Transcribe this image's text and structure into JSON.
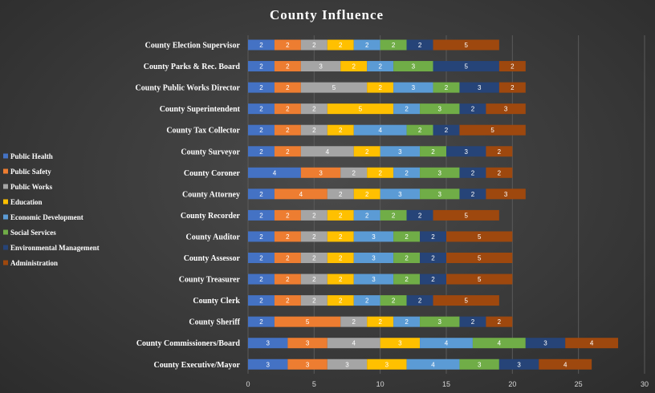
{
  "chart_data": {
    "type": "bar",
    "orientation": "horizontal",
    "stacked": true,
    "title": "County Influence",
    "xlim": [
      0,
      30
    ],
    "xticks": [
      0,
      5,
      10,
      15,
      20,
      25,
      30
    ],
    "grid": "vertical",
    "legend_position": "left",
    "categories": [
      "County Election Supervisor",
      "County Parks & Rec. Board",
      "County Public Works Director",
      "County Superintendent",
      "County Tax Collector",
      "County Surveyor",
      "County Coroner",
      "County Attorney",
      "County Recorder",
      "County Auditor",
      "County Assessor",
      "County Treasurer",
      "County Clerk",
      "County Sheriff",
      "County Commissioners/Board",
      "County Executive/Mayor"
    ],
    "series": [
      {
        "name": "Public Health",
        "color": "#4472c4",
        "values": [
          2,
          2,
          2,
          2,
          2,
          2,
          4,
          2,
          2,
          2,
          2,
          2,
          2,
          2,
          3,
          3
        ]
      },
      {
        "name": "Public Safety",
        "color": "#ed7d31",
        "values": [
          2,
          2,
          2,
          2,
          2,
          2,
          3,
          4,
          2,
          2,
          2,
          2,
          2,
          5,
          3,
          3
        ]
      },
      {
        "name": "Public Works",
        "color": "#a5a5a5",
        "values": [
          2,
          3,
          5,
          2,
          2,
          4,
          2,
          2,
          2,
          2,
          2,
          2,
          2,
          2,
          4,
          3
        ]
      },
      {
        "name": "Education",
        "color": "#ffc000",
        "values": [
          2,
          2,
          2,
          5,
          2,
          2,
          2,
          2,
          2,
          2,
          2,
          2,
          2,
          2,
          3,
          3
        ]
      },
      {
        "name": "Economic Development",
        "color": "#5b9bd5",
        "values": [
          2,
          2,
          3,
          2,
          4,
          3,
          2,
          3,
          2,
          3,
          3,
          3,
          2,
          2,
          4,
          4
        ]
      },
      {
        "name": "Social Services",
        "color": "#70ad47",
        "values": [
          2,
          3,
          2,
          3,
          2,
          2,
          3,
          3,
          2,
          2,
          2,
          2,
          2,
          3,
          4,
          3
        ]
      },
      {
        "name": "Environmental Management",
        "color": "#264478",
        "values": [
          2,
          5,
          3,
          2,
          2,
          3,
          2,
          2,
          2,
          2,
          2,
          2,
          2,
          2,
          3,
          3
        ]
      },
      {
        "name": "Administration",
        "color": "#9e480e",
        "values": [
          5,
          2,
          2,
          3,
          5,
          2,
          2,
          3,
          5,
          5,
          5,
          5,
          5,
          2,
          4,
          4
        ]
      }
    ]
  }
}
